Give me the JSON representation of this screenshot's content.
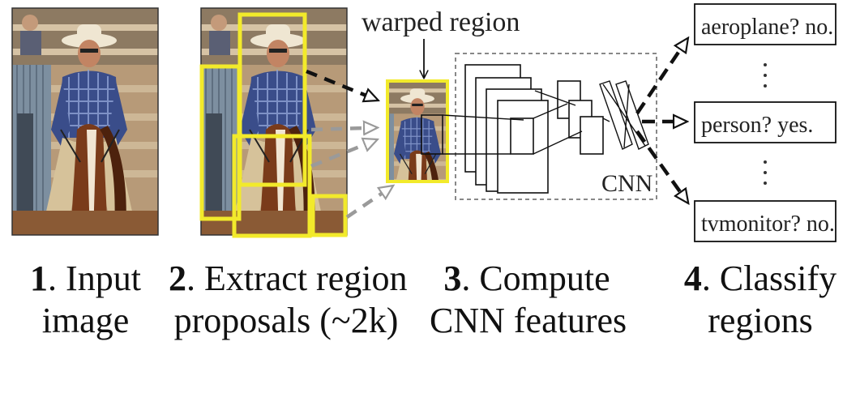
{
  "labels": {
    "warped_region": "warped region",
    "cnn": "CNN"
  },
  "classes": [
    {
      "text": "aeroplane? no."
    },
    {
      "text": "person? yes."
    },
    {
      "text": "tvmonitor? no."
    }
  ],
  "steps": [
    {
      "num": "1",
      "line1": ". Input",
      "line2": "image"
    },
    {
      "num": "2",
      "line1": ". Extract region",
      "line2": "proposals (~2k)"
    },
    {
      "num": "3",
      "line1": ". Compute",
      "line2": "CNN features"
    },
    {
      "num": "4",
      "line1": ". Classify",
      "line2": "regions"
    }
  ],
  "colors": {
    "proposal_box": "#f2ea2b",
    "arrow_dark": "#111111",
    "arrow_gray": "#9a9a9a",
    "dashed_frame": "#888888"
  }
}
